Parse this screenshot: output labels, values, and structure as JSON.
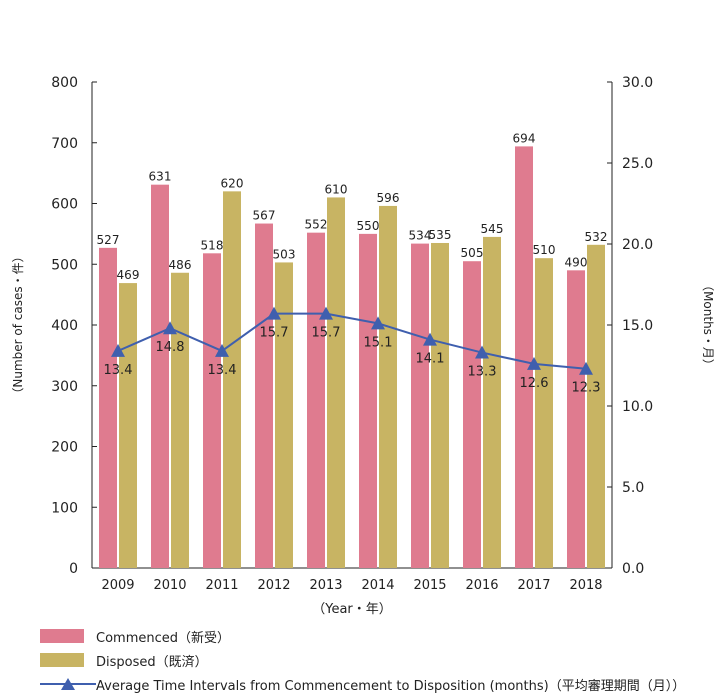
{
  "chart_data": {
    "type": "bar",
    "categories": [
      "2009",
      "2010",
      "2011",
      "2012",
      "2013",
      "2014",
      "2015",
      "2016",
      "2017",
      "2018"
    ],
    "series": [
      {
        "name": "Commenced（新受）",
        "kind": "bar",
        "axis": "left",
        "color": "#df7b8f",
        "values": [
          527,
          631,
          518,
          567,
          552,
          550,
          534,
          505,
          694,
          490
        ]
      },
      {
        "name": "Disposed（既済）",
        "kind": "bar",
        "axis": "left",
        "color": "#c8b463",
        "values": [
          469,
          486,
          620,
          503,
          610,
          596,
          535,
          545,
          510,
          532
        ]
      },
      {
        "name": "Average Time Intervals from Commencement to Disposition (months)（平均審理期間（月））",
        "kind": "line",
        "axis": "right",
        "color": "#3f5fae",
        "values": [
          13.4,
          14.8,
          13.4,
          15.7,
          15.7,
          15.1,
          14.1,
          13.3,
          12.6,
          12.3
        ],
        "labels": [
          "13.4",
          "14.8",
          "13.4",
          "15.7",
          "15.7",
          "15.1",
          "14.1",
          "13.3",
          "12.6",
          "12.3"
        ]
      }
    ],
    "xlabel": "（Year・年）",
    "ylabel": "（Number of cases・件）",
    "y2label": "（Months・月）",
    "ylim": [
      0,
      800
    ],
    "y2lim": [
      0,
      30
    ],
    "yticks": [
      "0",
      "100",
      "200",
      "300",
      "400",
      "500",
      "600",
      "700",
      "800"
    ],
    "y2ticks": [
      "0.0",
      "5.0",
      "10.0",
      "15.0",
      "20.0",
      "25.0",
      "30.0"
    ],
    "grid": false,
    "legend_position": "bottom-left"
  },
  "legend": {
    "commenced": "Commenced（新受）",
    "disposed": "Disposed（既済）",
    "average": "Average Time Intervals from Commencement to Disposition (months)（平均審理期間（月））"
  },
  "colors": {
    "commenced": "#df7b8f",
    "disposed": "#c8b463",
    "line": "#3f5fae"
  }
}
